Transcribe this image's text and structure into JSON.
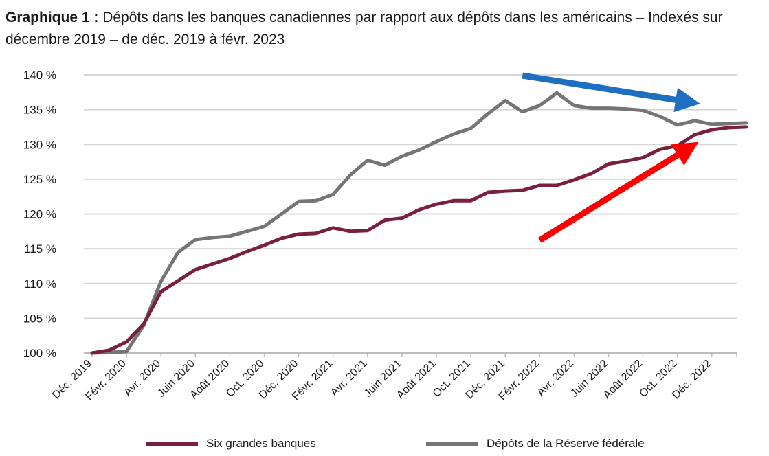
{
  "title": {
    "prefix": "Graphique 1 :",
    "text": "Dépôts dans les banques canadiennes par rapport aux dépôts dans les américains – Indexés sur décembre 2019 – de déc. 2019 à févr. 2023"
  },
  "chart_data": {
    "type": "line",
    "ylim": [
      100,
      140
    ],
    "yticks": [
      100,
      105,
      110,
      115,
      120,
      125,
      130,
      135,
      140
    ],
    "ytick_labels": [
      "100 %",
      "105 %",
      "110 %",
      "115 %",
      "120 %",
      "125 %",
      "130 %",
      "135 %",
      "140 %"
    ],
    "xtick_labels": [
      "Déc. 2019",
      "Févr. 2020",
      "Avr. 2020",
      "Juin 2020",
      "Août 2020",
      "Oct. 2020",
      "Déc. 2020",
      "Févr. 2021",
      "Avr. 2021",
      "Juin 2021",
      "Août 2021",
      "Oct. 2021",
      "Déc. 2021",
      "Févr. 2022",
      "Avr. 2022",
      "Juin 2022",
      "Août 2022",
      "Oct. 2022",
      "Déc. 2022"
    ],
    "x": [
      "2019-12",
      "2020-01",
      "2020-02",
      "2020-03",
      "2020-04",
      "2020-05",
      "2020-06",
      "2020-07",
      "2020-08",
      "2020-09",
      "2020-10",
      "2020-11",
      "2020-12",
      "2021-01",
      "2021-02",
      "2021-03",
      "2021-04",
      "2021-05",
      "2021-06",
      "2021-07",
      "2021-08",
      "2021-09",
      "2021-10",
      "2021-11",
      "2021-12",
      "2022-01",
      "2022-02",
      "2022-03",
      "2022-04",
      "2022-05",
      "2022-06",
      "2022-07",
      "2022-08",
      "2022-09",
      "2022-10",
      "2022-11",
      "2022-12",
      "2023-01",
      "2023-02"
    ],
    "series": [
      {
        "name": "Six grandes banques",
        "color": "#7a1f3d",
        "values": [
          100,
          100.4,
          101.6,
          104.2,
          108.8,
          110.4,
          112.0,
          112.8,
          113.6,
          114.6,
          115.5,
          116.5,
          117.1,
          117.2,
          118.0,
          117.5,
          117.6,
          119.1,
          119.4,
          120.6,
          121.4,
          121.9,
          121.9,
          123.1,
          123.3,
          123.4,
          124.1,
          124.1,
          124.9,
          125.8,
          127.2,
          127.6,
          128.1,
          129.3,
          129.8,
          131.4,
          132.1,
          132.4,
          132.5
        ]
      },
      {
        "name": "Dépôts de la Réserve fédérale",
        "color": "#757575",
        "values": [
          100,
          100.1,
          100.2,
          104.0,
          110.3,
          114.5,
          116.3,
          116.6,
          116.8,
          117.5,
          118.2,
          120.0,
          121.8,
          121.9,
          122.8,
          125.6,
          127.7,
          127.0,
          128.3,
          129.2,
          130.4,
          131.5,
          132.3,
          134.4,
          136.3,
          134.7,
          135.6,
          137.4,
          135.6,
          135.2,
          135.2,
          135.1,
          134.9,
          134.0,
          132.8,
          133.4,
          132.9,
          133.0,
          133.1
        ]
      }
    ],
    "annotations": [
      {
        "type": "arrow",
        "color": "#1f6fc0",
        "direction": "down-right",
        "from": [
          "2022-01",
          139.9
        ],
        "to": [
          "2022-11",
          136.1
        ]
      },
      {
        "type": "arrow",
        "color": "#ff0000",
        "direction": "up-right",
        "from": [
          "2022-02",
          116.2
        ],
        "to": [
          "2022-11",
          129.5
        ]
      }
    ],
    "grid": true,
    "legend_position": "bottom"
  }
}
